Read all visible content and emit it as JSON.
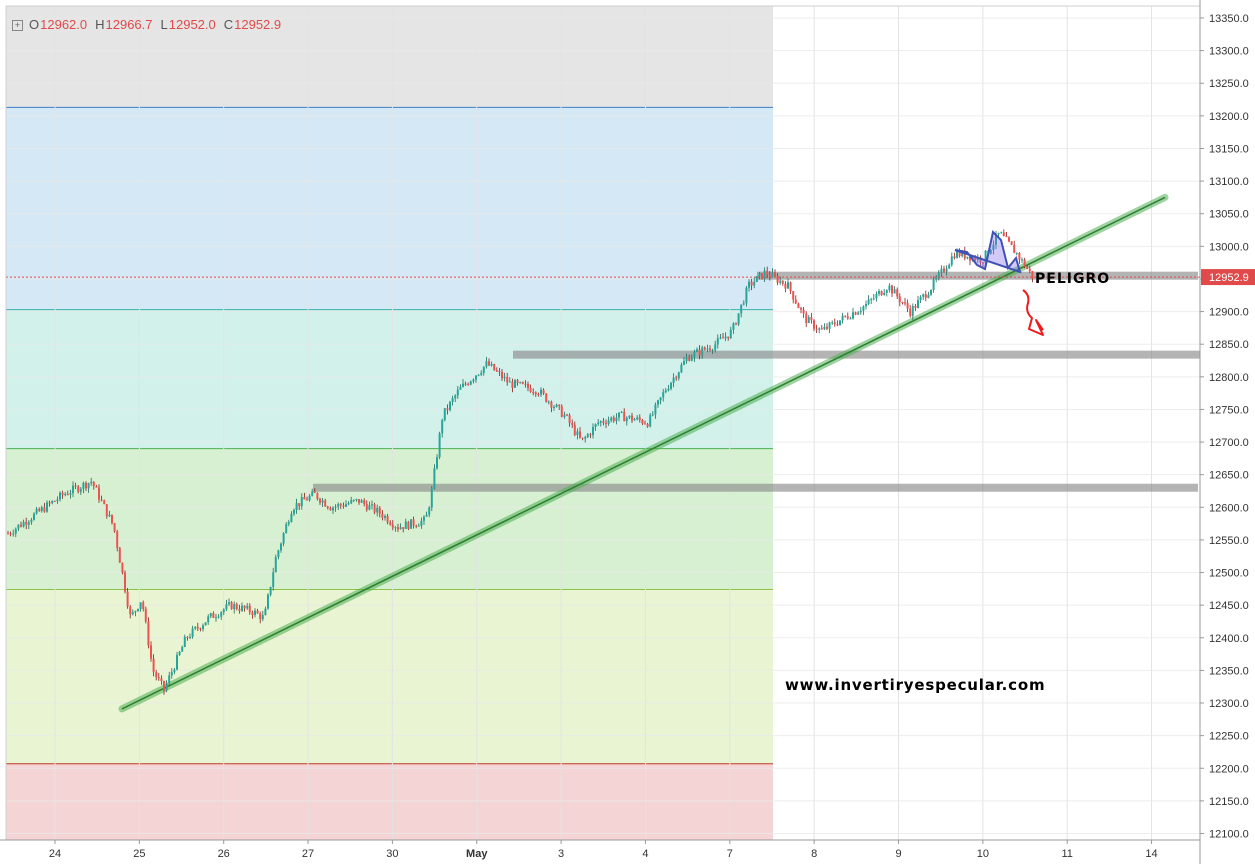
{
  "ohlc": {
    "open_label": "O",
    "open": "12962.0",
    "high_label": "H",
    "high": "12966.7",
    "low_label": "L",
    "low": "12952.0",
    "close_label": "C",
    "close": "12952.9",
    "expand_icon": "plus-square-icon"
  },
  "chart_data": {
    "type": "candlestick",
    "ylim": [
      12100,
      13350
    ],
    "y_ticks": [
      "12100.0",
      "12150.0",
      "12200.0",
      "12250.0",
      "12300.0",
      "12350.0",
      "12400.0",
      "12450.0",
      "12500.0",
      "12550.0",
      "12600.0",
      "12650.0",
      "12700.0",
      "12750.0",
      "12800.0",
      "12850.0",
      "12900.0",
      "12950.0",
      "13000.0",
      "13050.0",
      "13100.0",
      "13150.0",
      "13200.0",
      "13250.0",
      "13300.0",
      "13350.0"
    ],
    "x_ticks": [
      "24",
      "25",
      "26",
      "27",
      "30",
      "May",
      "3",
      "4",
      "7",
      "8",
      "9",
      "10",
      "11",
      "14"
    ],
    "price_path": [
      [
        0,
        12560
      ],
      [
        0.5,
        12590
      ],
      [
        1,
        12620
      ],
      [
        1.5,
        12640
      ],
      [
        1.9,
        12570
      ],
      [
        2.2,
        12430
      ],
      [
        2.4,
        12460
      ],
      [
        2.6,
        12350
      ],
      [
        2.8,
        12320
      ],
      [
        3.2,
        12400
      ],
      [
        3.6,
        12430
      ],
      [
        4,
        12450
      ],
      [
        4.4,
        12440
      ],
      [
        4.6,
        12430
      ],
      [
        4.8,
        12520
      ],
      [
        5.1,
        12600
      ],
      [
        5.5,
        12620
      ],
      [
        5.8,
        12600
      ],
      [
        6.3,
        12610
      ],
      [
        6.7,
        12590
      ],
      [
        7,
        12570
      ],
      [
        7.5,
        12580
      ],
      [
        7.6,
        12620
      ],
      [
        7.8,
        12740
      ],
      [
        8.1,
        12780
      ],
      [
        8.6,
        12820
      ],
      [
        9,
        12790
      ],
      [
        9.5,
        12780
      ],
      [
        10,
        12740
      ],
      [
        10.3,
        12700
      ],
      [
        10.6,
        12730
      ],
      [
        11,
        12740
      ],
      [
        11.5,
        12730
      ],
      [
        11.8,
        12780
      ],
      [
        12.2,
        12830
      ],
      [
        12.7,
        12850
      ],
      [
        13,
        12870
      ],
      [
        13.3,
        12940
      ],
      [
        13.6,
        12960
      ],
      [
        14,
        12940
      ],
      [
        14.3,
        12890
      ],
      [
        14.6,
        12870
      ],
      [
        15,
        12890
      ],
      [
        15.4,
        12910
      ],
      [
        15.8,
        12940
      ],
      [
        16.2,
        12900
      ],
      [
        16.6,
        12940
      ],
      [
        17,
        12990
      ],
      [
        17.5,
        12980
      ],
      [
        17.8,
        13020
      ],
      [
        18.1,
        12990
      ],
      [
        18.4,
        12953
      ]
    ],
    "current_price": "12952.9",
    "fib_levels": [
      13213,
      12903,
      12690,
      12474,
      12207
    ],
    "support_resistance": [
      12955,
      12834,
      12630
    ],
    "trendline": [
      [
        12291,
        0
      ],
      [
        13075,
        1
      ]
    ],
    "annotations": {
      "warning": "PELIGRO",
      "website": "www.invertiryespecular.com"
    }
  }
}
